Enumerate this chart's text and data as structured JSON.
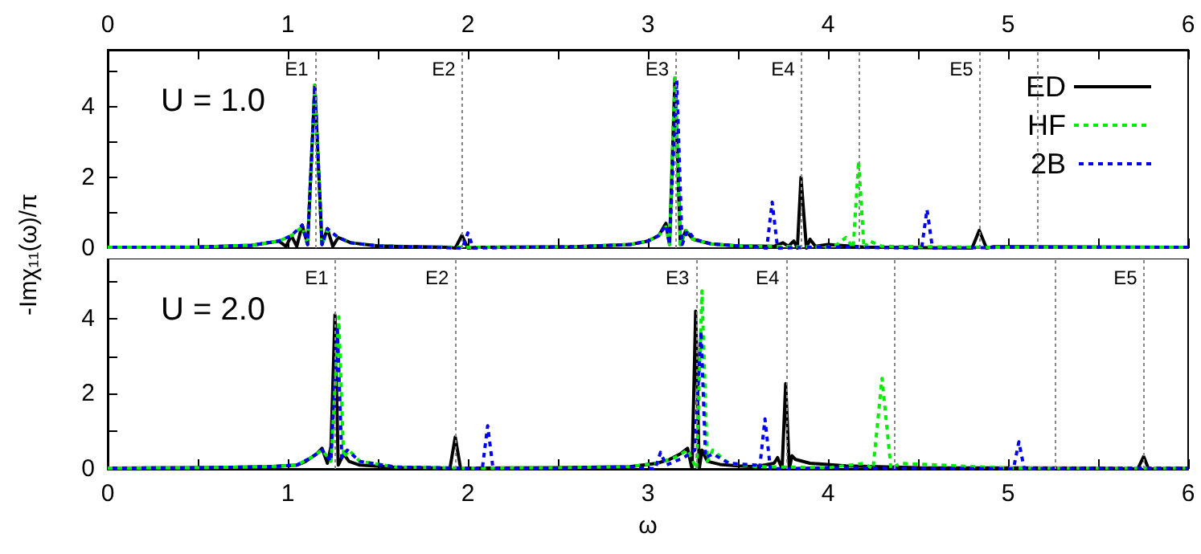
{
  "chart_data": [
    {
      "type": "line",
      "ylabel": "-Imχ₁₁(ω)/π",
      "annotations": [
        "U = 1.0"
      ],
      "legend": "top right",
      "grid": false,
      "marker": "none",
      "tick_labels": "y",
      "xlim": [
        0,
        6
      ],
      "xticks": [
        0,
        {
          "value": 0.5,
          "label": null
        },
        1,
        {
          "value": 1.5,
          "label": null
        },
        2,
        {
          "value": 2.5,
          "label": null
        },
        3,
        {
          "value": 3.5,
          "label": null
        },
        4,
        {
          "value": 4.5,
          "label": null
        },
        5,
        {
          "value": 5.5,
          "label": null
        },
        6
      ],
      "x2lim": [
        0,
        6
      ],
      "x2ticks": [
        0,
        {
          "value": 0.5,
          "label": null
        },
        1,
        {
          "value": 1.5,
          "label": null
        },
        2,
        {
          "value": 2.5,
          "label": null
        },
        3,
        {
          "value": 3.5,
          "label": null
        },
        4,
        {
          "value": 4.5,
          "label": null
        },
        5,
        {
          "value": 5.5,
          "label": null
        },
        6
      ],
      "ylim": [
        0,
        5.6
      ],
      "yticks": [
        0,
        {
          "value": 1,
          "label": null
        },
        2,
        {
          "value": 3,
          "label": null
        },
        4,
        {
          "value": 5,
          "label": null
        }
      ],
      "ref_lines": [
        {
          "axis": "x",
          "value": 1.15,
          "label": "E1"
        },
        {
          "axis": "x",
          "value": 1.967,
          "label": "E2"
        },
        {
          "axis": "x",
          "value": 3.152,
          "label": "E3"
        },
        {
          "axis": "x",
          "value": 3.851,
          "label": "E4"
        },
        {
          "axis": "x",
          "value": 4.17,
          "label": null
        },
        {
          "axis": "x",
          "value": 4.842,
          "label": "E5"
        },
        {
          "axis": "x",
          "value": 5.163,
          "label": null
        }
      ],
      "series": [
        {
          "name": "ED",
          "color": "#000000",
          "line_style": "solid",
          "x": [
            0,
            0.5,
            0.8,
            0.95,
            0.99,
            1.02,
            1.05,
            1.08,
            1.11,
            1.15,
            1.19,
            1.22,
            1.25,
            1.28,
            1.35,
            1.5,
            1.9,
            1.93,
            1.967,
            2.0,
            2.05,
            2.6,
            2.9,
            3.0,
            3.06,
            3.1,
            3.12,
            3.15,
            3.18,
            3.21,
            3.25,
            3.35,
            3.5,
            3.7,
            3.75,
            3.78,
            3.81,
            3.83,
            3.85,
            3.88,
            3.9,
            3.93,
            4.0,
            4.2,
            4.8,
            4.84,
            4.88,
            4.92,
            6
          ],
          "values": [
            0.02,
            0.03,
            0.08,
            0.2,
            0.05,
            0.35,
            0.05,
            0.65,
            0.1,
            4.6,
            0.1,
            0.55,
            0.05,
            0.3,
            0.15,
            0.06,
            0.02,
            0,
            0.36,
            0,
            0.02,
            0.04,
            0.1,
            0.2,
            0.35,
            0.7,
            0.1,
            4.8,
            0.1,
            0.5,
            0.25,
            0.12,
            0.06,
            0.05,
            0.15,
            0.05,
            0.2,
            0,
            2.0,
            0,
            0.25,
            0.05,
            0.1,
            0.03,
            0,
            0.5,
            0,
            0.04,
            0.02
          ]
        },
        {
          "name": "HF",
          "color": "#00ee00",
          "line_style": "dotted",
          "x": [
            0,
            0.5,
            0.8,
            0.95,
            1.02,
            1.08,
            1.11,
            1.15,
            1.19,
            1.22,
            1.28,
            1.35,
            1.5,
            2.0,
            2.6,
            2.9,
            3.0,
            3.06,
            3.1,
            3.12,
            3.15,
            3.18,
            3.21,
            3.25,
            3.35,
            3.5,
            4.0,
            4.05,
            4.1,
            4.14,
            4.17,
            4.2,
            4.23,
            4.3,
            5,
            6
          ],
          "values": [
            0.02,
            0.03,
            0.08,
            0.2,
            0.35,
            0.6,
            0.1,
            4.6,
            0.1,
            0.5,
            0.3,
            0.15,
            0.06,
            0.02,
            0.04,
            0.1,
            0.2,
            0.35,
            0.6,
            0.1,
            4.9,
            0.1,
            0.5,
            0.25,
            0.12,
            0.06,
            0.03,
            0.1,
            0.3,
            0,
            2.46,
            0,
            0.2,
            0.05,
            0.02,
            0.02
          ]
        },
        {
          "name": "2B",
          "color": "#0000ee",
          "line_style": "dotted",
          "x": [
            0,
            0.5,
            0.8,
            0.95,
            1.02,
            1.08,
            1.11,
            1.15,
            1.19,
            1.22,
            1.28,
            1.35,
            1.5,
            1.97,
            2.0,
            2.03,
            2.6,
            2.9,
            3.0,
            3.06,
            3.1,
            3.12,
            3.16,
            3.19,
            3.22,
            3.26,
            3.35,
            3.5,
            3.66,
            3.69,
            3.72,
            4.0,
            4.52,
            4.55,
            4.58,
            5,
            6
          ],
          "values": [
            0.02,
            0.03,
            0.08,
            0.2,
            0.35,
            0.65,
            0.1,
            4.6,
            0.1,
            0.55,
            0.3,
            0.15,
            0.06,
            0,
            0.43,
            0,
            0.04,
            0.1,
            0.2,
            0.35,
            0.65,
            0.1,
            4.75,
            0.1,
            0.5,
            0.25,
            0.12,
            0.06,
            0,
            1.3,
            0,
            0.03,
            0,
            1.09,
            0,
            0.02,
            0.02
          ]
        }
      ]
    },
    {
      "type": "line",
      "xlabel": "ω",
      "annotations": [
        "U = 2.0"
      ],
      "legend": false,
      "grid": false,
      "marker": "none",
      "xlim": [
        0,
        6
      ],
      "xticks": [
        0,
        {
          "value": 0.5,
          "label": null
        },
        1,
        {
          "value": 1.5,
          "label": null
        },
        2,
        {
          "value": 2.5,
          "label": null
        },
        3,
        {
          "value": 3.5,
          "label": null
        },
        4,
        {
          "value": 4.5,
          "label": null
        },
        5,
        {
          "value": 5.5,
          "label": null
        },
        6
      ],
      "ylim": [
        0,
        5.6
      ],
      "yticks": [
        0,
        {
          "value": 1,
          "label": null
        },
        2,
        {
          "value": 3,
          "label": null
        },
        4,
        {
          "value": 5,
          "label": null
        }
      ],
      "ref_lines": [
        {
          "axis": "x",
          "value": 1.262,
          "label": "E1"
        },
        {
          "axis": "x",
          "value": 1.93,
          "label": "E2"
        },
        {
          "axis": "x",
          "value": 3.265,
          "label": "E3"
        },
        {
          "axis": "x",
          "value": 3.765,
          "label": "E4"
        },
        {
          "axis": "x",
          "value": 4.369,
          "label": null
        },
        {
          "axis": "x",
          "value": 5.265,
          "label": null
        },
        {
          "axis": "x",
          "value": 5.753,
          "label": "E5"
        }
      ],
      "series": [
        {
          "color": "#000000",
          "line_style": "solid",
          "x": [
            0,
            0.5,
            0.9,
            1.05,
            1.1,
            1.13,
            1.16,
            1.19,
            1.22,
            1.24,
            1.262,
            1.28,
            1.31,
            1.34,
            1.4,
            1.6,
            1.88,
            1.9,
            1.93,
            1.96,
            2.0,
            2.5,
            2.9,
            3.05,
            3.12,
            3.18,
            3.22,
            3.245,
            3.265,
            3.285,
            3.3,
            3.33,
            3.4,
            3.5,
            3.6,
            3.7,
            3.72,
            3.745,
            3.765,
            3.785,
            3.8,
            3.82,
            3.9,
            4.1,
            4.5,
            5.5,
            5.72,
            5.753,
            5.78,
            6
          ],
          "values": [
            0.02,
            0.03,
            0.06,
            0.1,
            0.2,
            0.3,
            0.4,
            0.55,
            0.15,
            0.6,
            4.1,
            0.1,
            0.4,
            0.2,
            0.1,
            0.04,
            0.02,
            0,
            0.85,
            0,
            0.02,
            0.03,
            0.06,
            0.15,
            0.25,
            0.4,
            0.55,
            0,
            4.2,
            0,
            0.5,
            0.2,
            0.12,
            0.08,
            0.06,
            0.15,
            0.3,
            0,
            2.27,
            0,
            0.35,
            0.25,
            0.15,
            0.08,
            0.03,
            0.02,
            0,
            0.33,
            0,
            0.02
          ]
        },
        {
          "color": "#00ee00",
          "line_style": "dotted",
          "x": [
            0,
            0.5,
            0.9,
            1.05,
            1.13,
            1.19,
            1.24,
            1.283,
            1.31,
            1.34,
            1.4,
            1.6,
            2.0,
            2.5,
            2.9,
            3.05,
            3.15,
            3.22,
            3.27,
            3.3,
            3.33,
            3.36,
            3.45,
            3.6,
            4.0,
            4.2,
            4.25,
            4.3,
            4.35,
            4.4,
            5,
            6
          ],
          "values": [
            0.02,
            0.03,
            0.06,
            0.1,
            0.3,
            0.5,
            0.2,
            4.05,
            0.3,
            0.5,
            0.2,
            0.05,
            0.02,
            0.03,
            0.06,
            0.15,
            0.3,
            0.5,
            0,
            4.74,
            0.2,
            0.5,
            0.15,
            0.06,
            0.03,
            0.15,
            0.0,
            2.41,
            0,
            0.15,
            0.02,
            0.02
          ]
        },
        {
          "color": "#0000ee",
          "line_style": "dotted",
          "x": [
            0,
            0.5,
            0.9,
            1.05,
            1.13,
            1.19,
            1.24,
            1.275,
            1.3,
            1.33,
            1.4,
            1.6,
            2.0,
            2.08,
            2.11,
            2.14,
            2.5,
            2.9,
            3.04,
            3.07,
            3.1,
            3.2,
            3.26,
            3.295,
            3.32,
            3.36,
            3.45,
            3.6,
            3.62,
            3.65,
            3.68,
            4.0,
            5.03,
            5.06,
            5.09,
            5.5,
            6
          ],
          "values": [
            0.02,
            0.03,
            0.06,
            0.1,
            0.3,
            0.5,
            0.2,
            3.8,
            0.3,
            0.5,
            0.2,
            0.05,
            0.02,
            0,
            1.15,
            0,
            0.02,
            0.05,
            0,
            0.44,
            0.1,
            0.3,
            0.5,
            3.67,
            0.3,
            0.4,
            0.15,
            0.1,
            0,
            1.33,
            0,
            0.03,
            0,
            0.72,
            0,
            0.02,
            0.02
          ]
        }
      ]
    }
  ]
}
